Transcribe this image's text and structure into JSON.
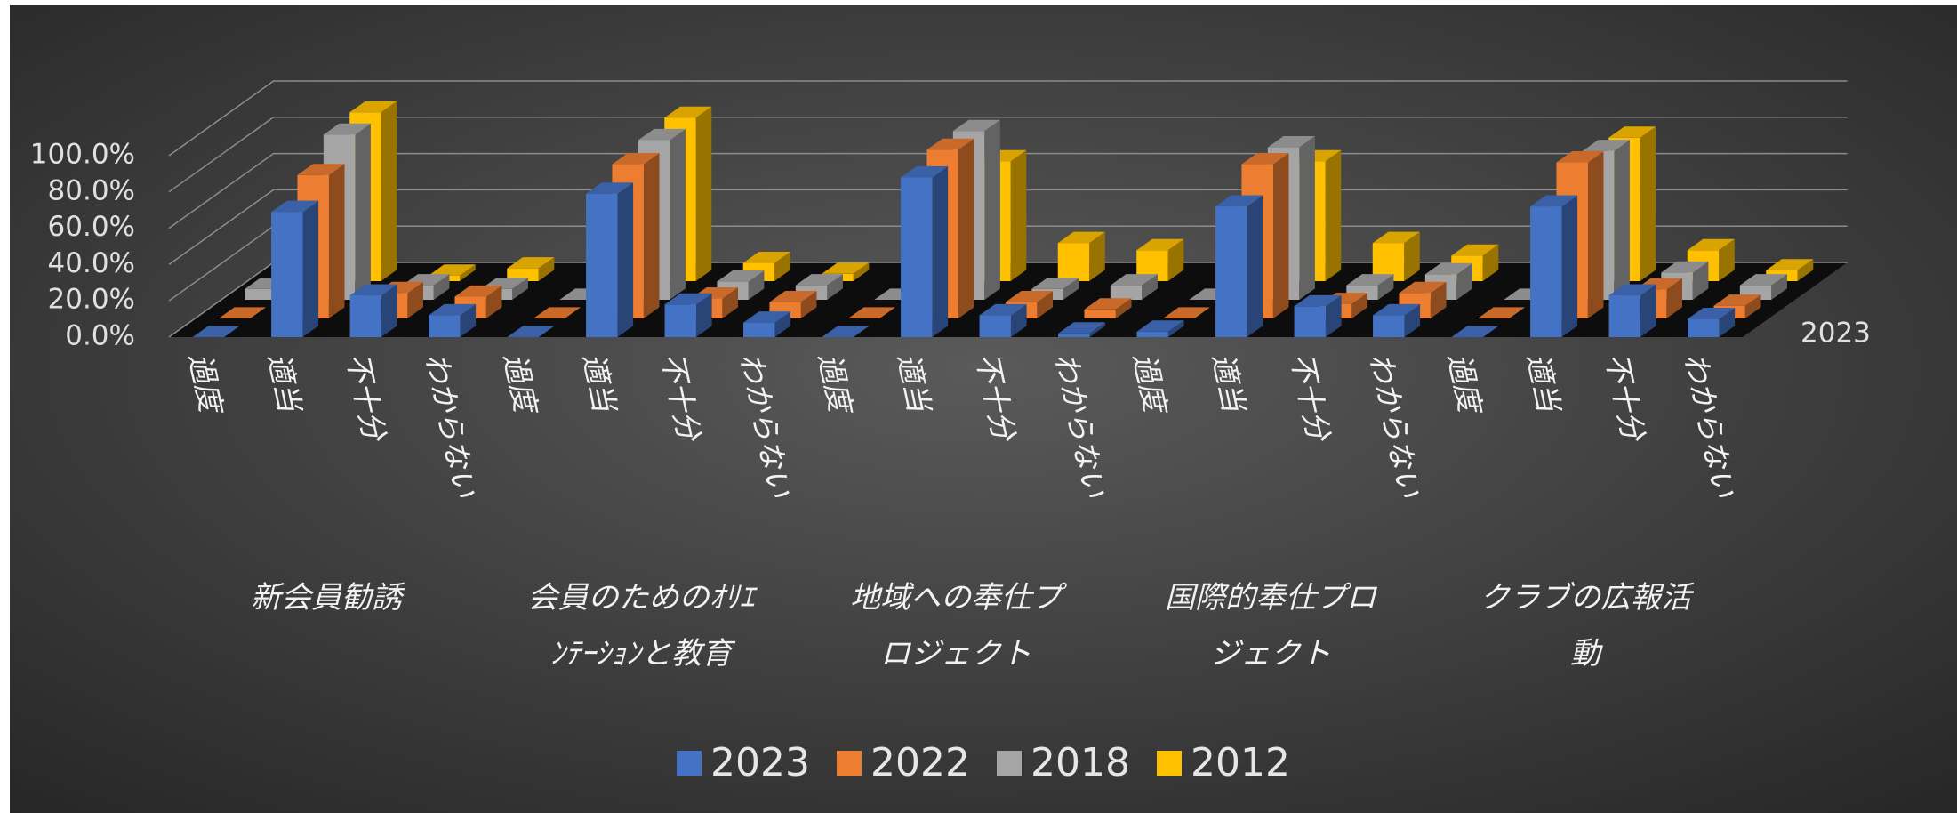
{
  "chart_data": {
    "type": "bar3d",
    "groups": [
      "新会員勧誘",
      "会員のためのｵﾘｴﾝﾃｰｼｮﾝと教育",
      "地域への奉仕プロジェクト",
      "国際的奉仕プロジェクト",
      "クラブの広報活動"
    ],
    "categories": [
      "過度",
      "適当",
      "不十分",
      "わからない",
      "過度",
      "適当",
      "不十分",
      "わからない",
      "過度",
      "適当",
      "不十分",
      "わからない",
      "過度",
      "適当",
      "不十分",
      "わからない",
      "過度",
      "適当",
      "不十分",
      "わからない"
    ],
    "series": [
      {
        "name": "2023",
        "color": "#4472c4",
        "values": [
          0,
          69,
          23,
          12,
          0,
          79,
          18,
          8,
          0,
          88,
          12,
          2,
          3,
          72,
          17,
          12,
          0,
          72,
          23,
          10
        ]
      },
      {
        "name": "2022",
        "color": "#ed7d31",
        "values": [
          0,
          79,
          14,
          12,
          0,
          85,
          11,
          9,
          0,
          93,
          9,
          5,
          0,
          85,
          8,
          14,
          0,
          86,
          16,
          7
        ]
      },
      {
        "name": "2018",
        "color": "#a5a5a5",
        "values": [
          6,
          91,
          8,
          6,
          0,
          88,
          10,
          8,
          0,
          93,
          6,
          8,
          0,
          84,
          8,
          14,
          0,
          82,
          15,
          8
        ]
      },
      {
        "name": "2012",
        "color": "#ffc000",
        "values": [
          0,
          93,
          3,
          7,
          0,
          90,
          10,
          4,
          0,
          66,
          21,
          17,
          0,
          66,
          21,
          14,
          0,
          79,
          17,
          6
        ]
      }
    ],
    "ylim": [
      0,
      100
    ],
    "yticks": [
      {
        "value": 0,
        "label": "0.0%"
      },
      {
        "value": 20,
        "label": "20.0%"
      },
      {
        "value": 40,
        "label": "40.0%"
      },
      {
        "value": 60,
        "label": "60.0%"
      },
      {
        "value": 80,
        "label": "80.0%"
      },
      {
        "value": 100,
        "label": "100.0%"
      }
    ],
    "grid": true
  }
}
